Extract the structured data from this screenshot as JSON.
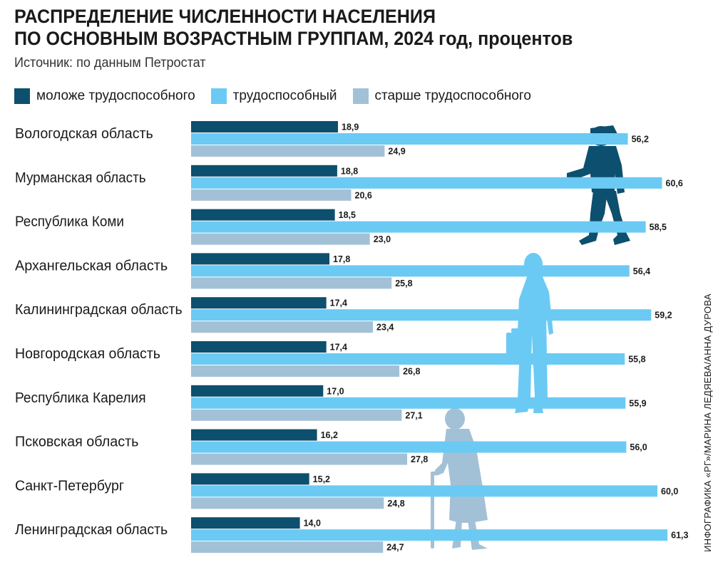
{
  "header": {
    "title_line1": "РАСПРЕДЕЛЕНИЕ ЧИСЛЕННОСТИ НАСЕЛЕНИЯ",
    "title_line2": "ПО ОСНОВНЫМ ВОЗРАСТНЫМ ГРУППАМ, 2024 год, процентов",
    "source": "Источник: по данным Петростат"
  },
  "credit": "ИНФОГРАФИКА «РГ»/МАРИНА ЛЕДЯЕВА/АННА ДУРОВА",
  "colors": {
    "young": "#0d4f6e",
    "working": "#6bcaf3",
    "old": "#a3c1d6",
    "text": "#1a1a1a"
  },
  "legend": [
    {
      "label": "моложе трудоспособного",
      "color": "#0d4f6e"
    },
    {
      "label": "трудоспособный",
      "color": "#6bcaf3"
    },
    {
      "label": "старше трудоспособного",
      "color": "#a3c1d6"
    }
  ],
  "chart_data": {
    "type": "bar",
    "orientation": "horizontal",
    "categories": [
      "Вологодская область",
      "Мурманская область",
      "Республика Коми",
      "Архангельская область",
      "Калининградская область",
      "Новгородская область",
      "Республика Карелия",
      "Псковская область",
      "Санкт-Петербург",
      "Ленинградская область"
    ],
    "series": [
      {
        "name": "моложе трудоспособного",
        "values": [
          18.9,
          18.8,
          18.5,
          17.8,
          17.4,
          17.4,
          17.0,
          16.2,
          15.2,
          14.0
        ]
      },
      {
        "name": "трудоспособный",
        "values": [
          56.2,
          60.6,
          58.5,
          56.4,
          59.2,
          55.8,
          55.9,
          56.0,
          60.0,
          61.3
        ]
      },
      {
        "name": "старше трудоспособного",
        "values": [
          24.9,
          20.6,
          23.0,
          25.8,
          23.4,
          26.8,
          27.1,
          27.8,
          24.8,
          24.7
        ]
      }
    ],
    "value_labels": [
      [
        "18,9",
        "18,8",
        "18,5",
        "17,8",
        "17,4",
        "17,4",
        "17,0",
        "16,2",
        "15,2",
        "14,0"
      ],
      [
        "56,2",
        "60,6",
        "58,5",
        "56,4",
        "59,2",
        "55,8",
        "55,9",
        "56,0",
        "60,0",
        "61,3"
      ],
      [
        "24,9",
        "20,6",
        "23,0",
        "25,8",
        "23,4",
        "26,8",
        "27,1",
        "27,8",
        "24,8",
        "24,7"
      ]
    ],
    "xlim": [
      0,
      65
    ],
    "grid": false,
    "legend_position": "top-left"
  }
}
